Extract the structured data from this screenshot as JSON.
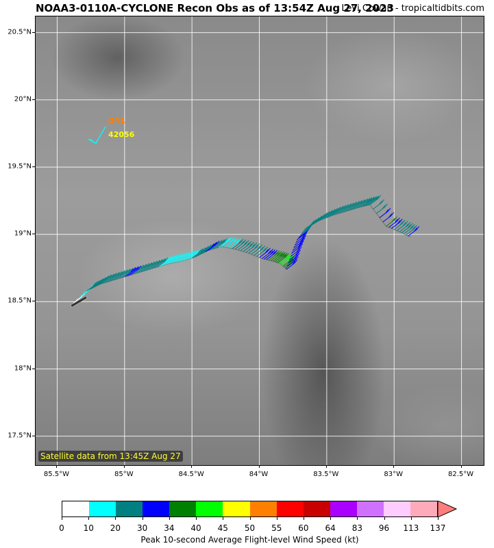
{
  "header": {
    "title": "NOAA3-0110A-CYCLONE Recon Obs as of 13:54Z Aug 27, 2023",
    "credit": "Levi Cowan - tropicaltidbits.com"
  },
  "map": {
    "satellite_label": "Satellite data from 13:45Z Aug 27",
    "lat_labels": [
      {
        "text": "20.5°N",
        "value": 20.5
      },
      {
        "text": "20°N",
        "value": 20.0
      },
      {
        "text": "19.5°N",
        "value": 19.5
      },
      {
        "text": "19°N",
        "value": 19.0
      },
      {
        "text": "18.5°N",
        "value": 18.5
      },
      {
        "text": "18°N",
        "value": 18.0
      },
      {
        "text": "17.5°N",
        "value": 17.5
      }
    ],
    "lon_labels": [
      {
        "text": "85.5°W",
        "value": -85.5
      },
      {
        "text": "85°W",
        "value": -85.0
      },
      {
        "text": "84.5°W",
        "value": -84.5
      },
      {
        "text": "84°W",
        "value": -84.0
      },
      {
        "text": "83.5°W",
        "value": -83.5
      },
      {
        "text": "83°W",
        "value": -83.0
      },
      {
        "text": "82.5°W",
        "value": -82.5
      }
    ],
    "lon_range": [
      -85.66,
      -82.33
    ],
    "lat_range": [
      17.28,
      20.62
    ],
    "buoy": {
      "id": "42056",
      "value": "041",
      "id_color": "#ffff00",
      "value_color": "#ff7f00",
      "lon": -85.07,
      "lat": 19.77
    }
  },
  "chart_data": {
    "type": "scatter",
    "title": "NOAA3-0110A-CYCLONE Recon Obs as of 13:54Z Aug 27, 2023",
    "xlabel": "",
    "ylabel": "",
    "xlim": [
      -85.66,
      -82.33
    ],
    "ylim": [
      17.28,
      20.62
    ],
    "grid": true,
    "flight_track": [
      {
        "lon": -85.38,
        "lat": 18.49,
        "wind": 5
      },
      {
        "lon": -85.28,
        "lat": 18.58,
        "wind": 22
      },
      {
        "lon": -85.18,
        "lat": 18.63,
        "wind": 22
      },
      {
        "lon": -85.08,
        "lat": 18.66,
        "wind": 22
      },
      {
        "lon": -84.98,
        "lat": 18.69,
        "wind": 32
      },
      {
        "lon": -84.88,
        "lat": 18.72,
        "wind": 22
      },
      {
        "lon": -84.78,
        "lat": 18.75,
        "wind": 22
      },
      {
        "lon": -84.68,
        "lat": 18.78,
        "wind": 15
      },
      {
        "lon": -84.58,
        "lat": 18.8,
        "wind": 15
      },
      {
        "lon": -84.48,
        "lat": 18.83,
        "wind": 22
      },
      {
        "lon": -84.38,
        "lat": 18.88,
        "wind": 32
      },
      {
        "lon": -84.28,
        "lat": 18.91,
        "wind": 15
      },
      {
        "lon": -84.18,
        "lat": 18.89,
        "wind": 22
      },
      {
        "lon": -84.08,
        "lat": 18.86,
        "wind": 22
      },
      {
        "lon": -83.98,
        "lat": 18.82,
        "wind": 32
      },
      {
        "lon": -83.9,
        "lat": 18.8,
        "wind": 36
      },
      {
        "lon": -83.84,
        "lat": 18.78,
        "wind": 42
      },
      {
        "lon": -83.8,
        "lat": 18.74,
        "wind": 32
      },
      {
        "lon": -83.76,
        "lat": 18.86,
        "wind": 32
      },
      {
        "lon": -83.72,
        "lat": 18.96,
        "wind": 32
      },
      {
        "lon": -83.66,
        "lat": 19.04,
        "wind": 22
      },
      {
        "lon": -83.56,
        "lat": 19.1,
        "wind": 22
      },
      {
        "lon": -83.46,
        "lat": 19.14,
        "wind": 22
      },
      {
        "lon": -83.36,
        "lat": 19.17,
        "wind": 22
      },
      {
        "lon": -83.26,
        "lat": 19.2,
        "wind": 22
      },
      {
        "lon": -83.18,
        "lat": 19.22,
        "wind": 22
      },
      {
        "lon": -83.06,
        "lat": 19.06,
        "wind": 36
      },
      {
        "lon": -82.96,
        "lat": 19.02,
        "wind": 22
      },
      {
        "lon": -82.88,
        "lat": 18.98,
        "wind": 32
      }
    ],
    "colorbar": {
      "title": "Peak 10-second Average Flight-level Wind Speed (kt)",
      "ticks": [
        "0",
        "10",
        "20",
        "30",
        "34",
        "40",
        "45",
        "50",
        "55",
        "60",
        "64",
        "83",
        "96",
        "113",
        "137"
      ],
      "colors": [
        "#ffffff",
        "#00ffff",
        "#008080",
        "#0000ff",
        "#008000",
        "#00ff00",
        "#ffff00",
        "#ff7f00",
        "#ff0000",
        "#c80000",
        "#aa00ff",
        "#d070ff",
        "#ffccff",
        "#ffaabb"
      ],
      "arrow_color": "#ff7d7d"
    }
  }
}
